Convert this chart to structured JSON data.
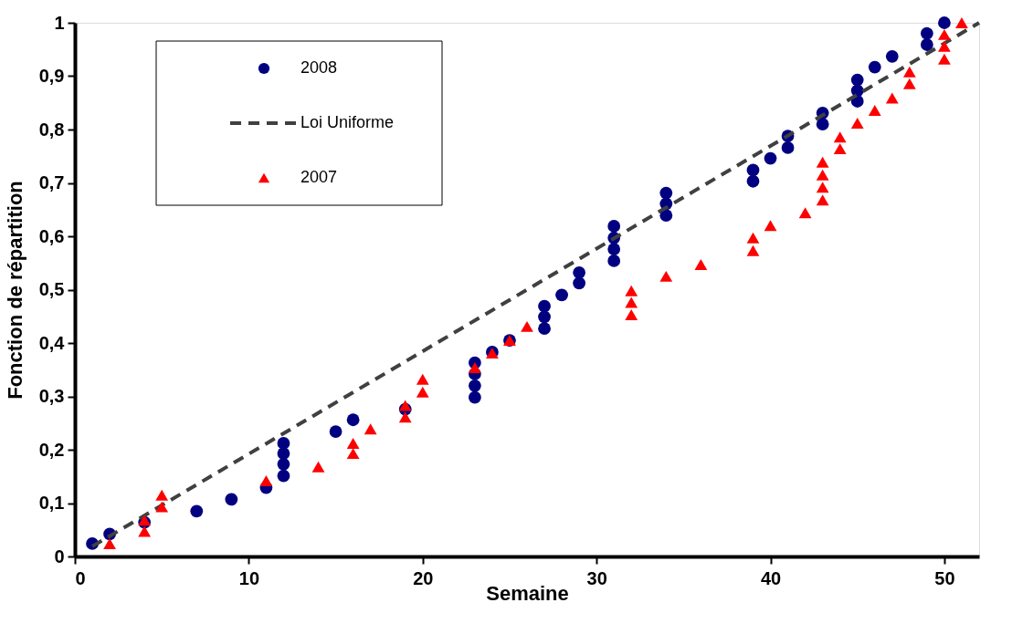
{
  "chart_data": {
    "type": "scatter",
    "xlabel": "Semaine",
    "ylabel": "Fonction de répartition",
    "xlim": [
      0,
      52
    ],
    "xticks": [
      0,
      10,
      20,
      30,
      40,
      50
    ],
    "ylim": [
      0,
      1
    ],
    "yticks": [
      0,
      {
        "value": 0.1,
        "label": "0,1"
      },
      {
        "value": 0.2,
        "label": "0,2"
      },
      {
        "value": 0.3,
        "label": "0,3"
      },
      {
        "value": 0.4,
        "label": "0,4"
      },
      {
        "value": 0.5,
        "label": "0,5"
      },
      {
        "value": 0.6,
        "label": "0,6"
      },
      {
        "value": 0.7,
        "label": "0,7"
      },
      {
        "value": 0.8,
        "label": "0,8"
      },
      {
        "value": 0.9,
        "label": "0,9"
      },
      1
    ],
    "grid": false,
    "legend": "top left",
    "series": [
      {
        "name": "2008",
        "marker": "circle",
        "color": "#000080",
        "x": [
          1,
          2,
          4,
          7,
          9,
          11,
          12,
          12,
          12,
          12,
          15,
          16,
          19,
          23,
          23,
          23,
          23,
          24,
          25,
          27,
          27,
          27,
          28,
          29,
          29,
          31,
          31,
          31,
          31,
          34,
          34,
          34,
          39,
          39,
          40,
          41,
          41,
          43,
          43,
          45,
          45,
          45,
          46,
          47,
          49,
          49,
          50
        ],
        "values": [
          0.024,
          0.042,
          0.064,
          0.085,
          0.107,
          0.129,
          0.151,
          0.173,
          0.193,
          0.212,
          0.234,
          0.256,
          0.276,
          0.298,
          0.32,
          0.342,
          0.363,
          0.383,
          0.405,
          0.427,
          0.449,
          0.469,
          0.49,
          0.512,
          0.532,
          0.554,
          0.576,
          0.597,
          0.619,
          0.639,
          0.661,
          0.681,
          0.703,
          0.724,
          0.746,
          0.766,
          0.788,
          0.81,
          0.831,
          0.853,
          0.873,
          0.893,
          0.917,
          0.937,
          0.959,
          0.98,
          1.0
        ]
      },
      {
        "name": "Loi Uniforme",
        "type": "line",
        "marker": "none",
        "line_style": "dashed",
        "color": "#404040",
        "x": [
          1,
          52
        ],
        "values": [
          0.019,
          1.0
        ]
      },
      {
        "name": "2007",
        "marker": "triangle",
        "color": "#ff0000",
        "x": [
          2,
          4,
          4,
          5,
          5,
          11,
          14,
          16,
          16,
          17,
          19,
          19,
          20,
          20,
          23,
          24,
          25,
          26,
          32,
          32,
          32,
          34,
          36,
          39,
          39,
          40,
          42,
          43,
          43,
          43,
          43,
          44,
          44,
          45,
          46,
          47,
          48,
          48,
          50,
          50,
          50,
          51
        ],
        "values": [
          0.024,
          0.047,
          0.068,
          0.093,
          0.115,
          0.142,
          0.168,
          0.193,
          0.212,
          0.239,
          0.261,
          0.283,
          0.308,
          0.332,
          0.354,
          0.381,
          0.405,
          0.431,
          0.453,
          0.476,
          0.498,
          0.525,
          0.547,
          0.573,
          0.597,
          0.62,
          0.644,
          0.668,
          0.692,
          0.715,
          0.739,
          0.764,
          0.786,
          0.812,
          0.836,
          0.859,
          0.886,
          0.908,
          0.932,
          0.956,
          0.978,
          1.0
        ]
      }
    ]
  }
}
